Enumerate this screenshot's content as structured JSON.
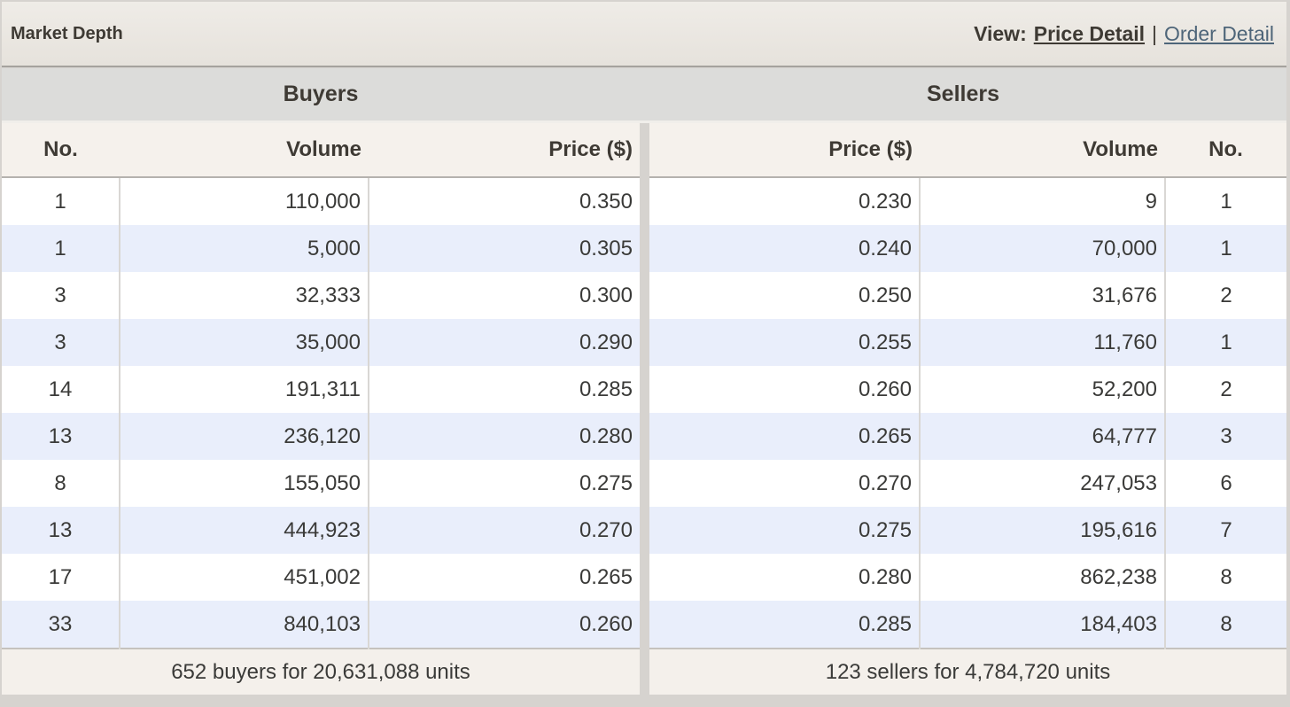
{
  "header": {
    "title": "Market Depth",
    "view_label": "View:",
    "separator": "|",
    "views": [
      {
        "label": "Price Detail",
        "active": true
      },
      {
        "label": "Order Detail",
        "active": false
      }
    ]
  },
  "buyers": {
    "section_title": "Buyers",
    "columns": [
      "No.",
      "Volume",
      "Price ($)"
    ],
    "rows": [
      [
        "1",
        "110,000",
        "0.350"
      ],
      [
        "1",
        "5,000",
        "0.305"
      ],
      [
        "3",
        "32,333",
        "0.300"
      ],
      [
        "3",
        "35,000",
        "0.290"
      ],
      [
        "14",
        "191,311",
        "0.285"
      ],
      [
        "13",
        "236,120",
        "0.280"
      ],
      [
        "8",
        "155,050",
        "0.275"
      ],
      [
        "13",
        "444,923",
        "0.270"
      ],
      [
        "17",
        "451,002",
        "0.265"
      ],
      [
        "33",
        "840,103",
        "0.260"
      ]
    ],
    "summary": "652 buyers for 20,631,088 units"
  },
  "sellers": {
    "section_title": "Sellers",
    "columns": [
      "Price ($)",
      "Volume",
      "No."
    ],
    "rows": [
      [
        "0.230",
        "9",
        "1"
      ],
      [
        "0.240",
        "70,000",
        "1"
      ],
      [
        "0.250",
        "31,676",
        "2"
      ],
      [
        "0.255",
        "11,760",
        "1"
      ],
      [
        "0.260",
        "52,200",
        "2"
      ],
      [
        "0.265",
        "64,777",
        "3"
      ],
      [
        "0.270",
        "247,053",
        "6"
      ],
      [
        "0.275",
        "195,616",
        "7"
      ],
      [
        "0.280",
        "862,238",
        "8"
      ],
      [
        "0.285",
        "184,403",
        "8"
      ]
    ],
    "summary": "123 sellers for 4,784,720 units"
  },
  "colors": {
    "page_background": "#d6d3cf",
    "titlebar_background": "#e9e5e0",
    "band_background": "#dcdcda",
    "header_row_background": "#f5f1ec",
    "row_background": "#ffffff",
    "row_alt_background": "#e9eefb",
    "footer_background": "#f4f0eb",
    "text": "#3a3a38",
    "link_inactive": "#4e6579"
  }
}
